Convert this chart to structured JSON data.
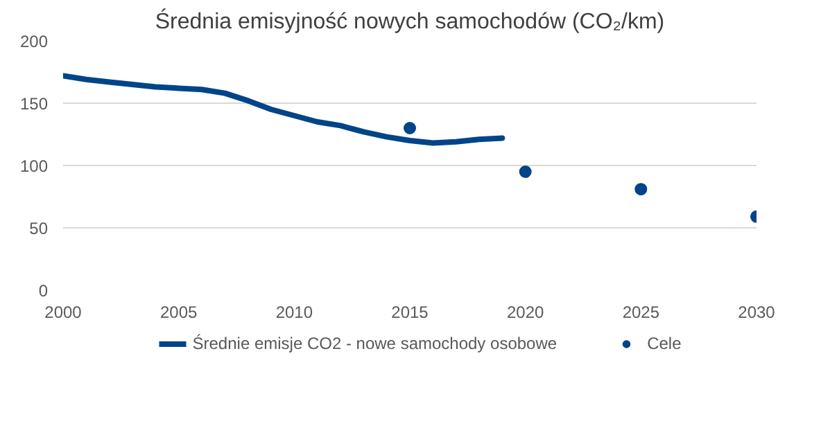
{
  "chart_data": {
    "type": "line",
    "title": "Średnia emisyjność nowych samochodów (CO₂/km)",
    "xlim": [
      2000,
      2030
    ],
    "xticks": [
      2000,
      2005,
      2010,
      2015,
      2020,
      2025,
      2030
    ],
    "ylim": [
      0,
      200
    ],
    "yticks": [
      0,
      50,
      100,
      150,
      200
    ],
    "grid": "y",
    "legend": "bottom",
    "series": [
      {
        "name": "Średnie emisje CO2 - nowe samochody osobowe",
        "color": "#004489",
        "x": [
          2000,
          2001,
          2002,
          2003,
          2004,
          2005,
          2006,
          2007,
          2008,
          2009,
          2010,
          2011,
          2012,
          2013,
          2014,
          2015,
          2016,
          2017,
          2018,
          2019
        ],
        "values": [
          172,
          169,
          167,
          165,
          163,
          162,
          161,
          158,
          152,
          145,
          140,
          135,
          132,
          127,
          123,
          120,
          118,
          119,
          121,
          122
        ]
      },
      {
        "name": "Cele",
        "type": "scatter",
        "marker": "circle",
        "color": "#004489",
        "x": [
          2015,
          2020,
          2025,
          2030
        ],
        "values": [
          130,
          95,
          81,
          59
        ]
      }
    ]
  }
}
